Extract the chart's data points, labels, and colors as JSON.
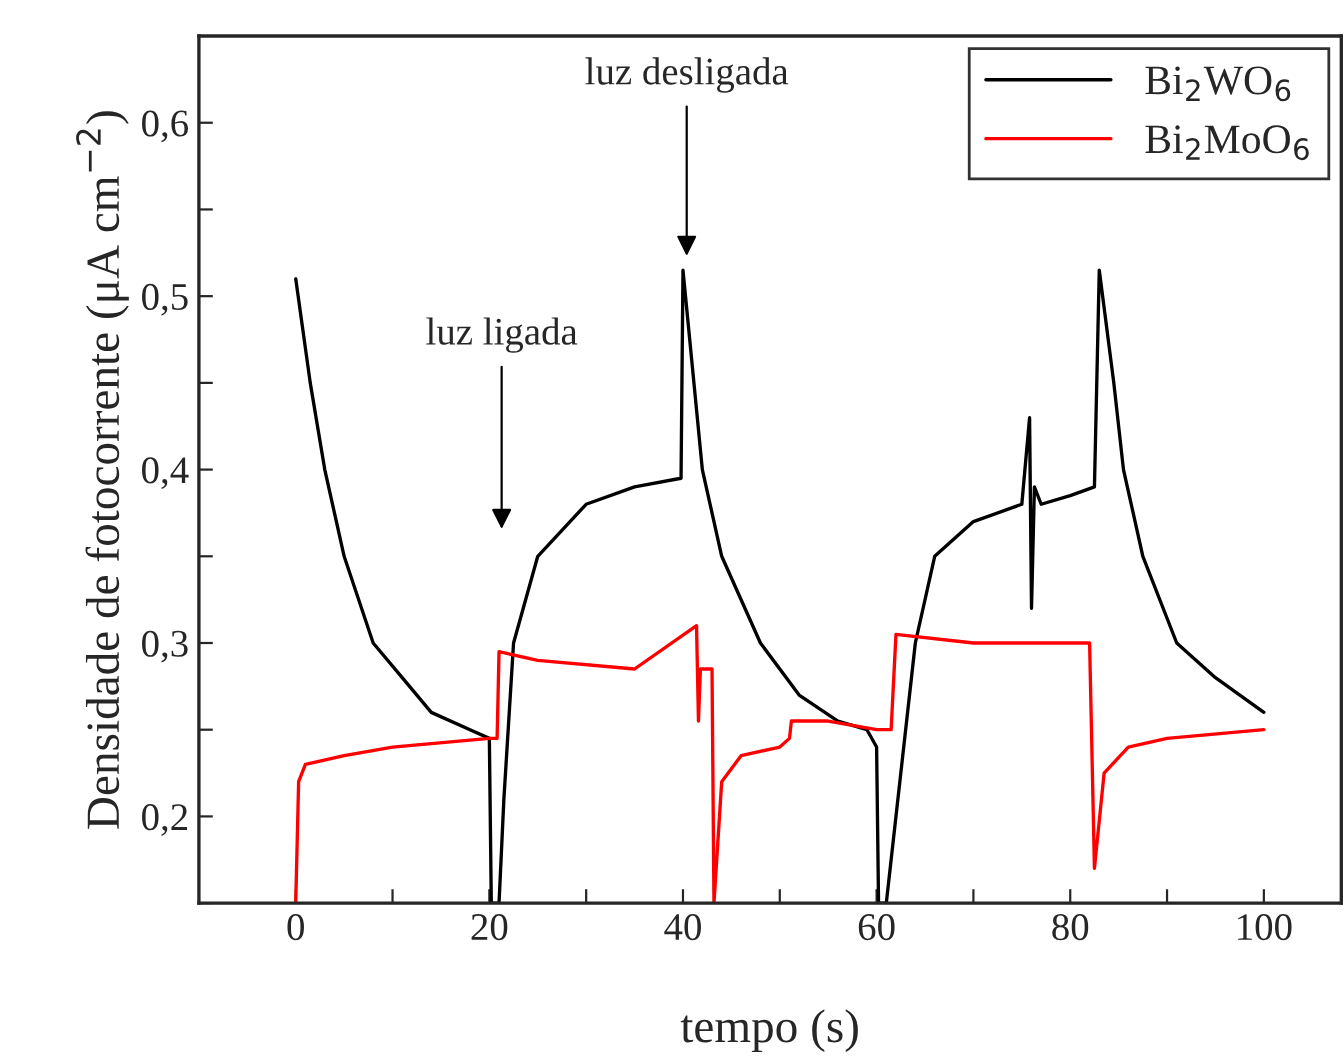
{
  "chart_data": {
    "type": "line",
    "xlabel": "tempo (s)",
    "ylabel": "Densidade de fotocorrente (μA cm$^{−2}$)",
    "x": [
      0,
      1.5,
      3,
      5,
      8,
      11,
      14,
      18,
      20,
      20.2,
      21,
      21.5,
      22.5,
      25,
      30,
      35,
      39.8,
      40,
      42,
      44,
      48,
      52,
      56,
      59,
      60,
      60.2,
      61,
      62,
      64,
      66,
      70,
      75,
      75.8,
      76,
      76.3,
      77,
      80,
      82.5,
      83,
      84.5,
      85.5,
      87.5,
      91,
      95,
      100
    ],
    "series": [
      {
        "name": "Bi$_{2}$WO$_{6}$",
        "color": "#000000",
        "values": [
          0.51,
          0.45,
          0.4,
          0.35,
          0.3,
          0.28,
          0.26,
          0.25,
          0.245,
          0.15,
          0.15,
          0.21,
          0.3,
          0.35,
          0.38,
          0.39,
          0.395,
          0.515,
          0.4,
          0.35,
          0.3,
          0.27,
          0.255,
          0.25,
          0.24,
          0.15,
          0.15,
          0.2,
          0.3,
          0.35,
          0.37,
          0.38,
          0.43,
          0.32,
          0.39,
          0.38,
          0.385,
          0.39,
          0.515,
          0.45,
          0.4,
          0.35,
          0.3,
          0.28,
          0.26
        ]
      },
      {
        "name": "Bi$_{2}$MoO$_{6}$",
        "color": "#ff0000",
        "x": [
          0,
          0.3,
          1,
          5,
          10,
          20,
          20.8,
          21,
          25,
          35,
          41.4,
          41.6,
          41.8,
          43,
          43.2,
          44,
          46,
          50,
          51,
          51.2,
          55,
          60,
          61.5,
          62,
          70,
          82,
          82.5,
          83.5,
          86,
          90,
          100
        ],
        "values": [
          0.15,
          0.22,
          0.23,
          0.235,
          0.24,
          0.245,
          0.245,
          0.295,
          0.29,
          0.285,
          0.31,
          0.255,
          0.285,
          0.285,
          0.15,
          0.22,
          0.235,
          0.24,
          0.245,
          0.255,
          0.255,
          0.25,
          0.25,
          0.305,
          0.3,
          0.3,
          0.17,
          0.225,
          0.24,
          0.245,
          0.25
        ]
      }
    ],
    "xlim": [
      -10,
      108
    ],
    "xticks": [
      0,
      {
        "value": 10,
        "label": null
      },
      20,
      {
        "value": 30,
        "label": null
      },
      40,
      {
        "value": 50,
        "label": null
      },
      60,
      {
        "value": 70,
        "label": null
      },
      80,
      {
        "value": 90,
        "label": null
      },
      100
    ],
    "ylim": [
      0.15,
      0.65
    ],
    "yticks": [
      {
        "value": 0.15,
        "label": null
      },
      {
        "value": 0.2,
        "label": "0,2"
      },
      {
        "value": 0.25,
        "label": null
      },
      {
        "value": 0.3,
        "label": "0,3"
      },
      {
        "value": 0.35,
        "label": null
      },
      {
        "value": 0.4,
        "label": "0,4"
      },
      {
        "value": 0.45,
        "label": null
      },
      {
        "value": 0.5,
        "label": "0,5"
      },
      {
        "value": 0.55,
        "label": null
      },
      {
        "value": 0.6,
        "label": "0,6"
      }
    ],
    "annotations": [
      "luz ligada",
      "luz desligada"
    ],
    "legend": "top right",
    "grid": false
  }
}
